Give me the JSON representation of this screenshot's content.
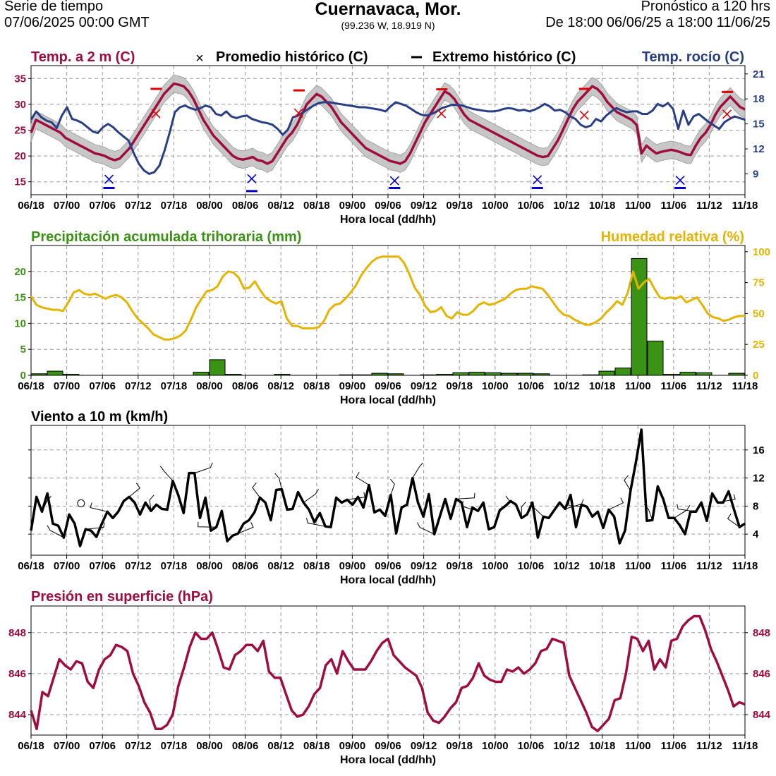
{
  "header": {
    "left1": "Serie de tiempo",
    "left2": "07/06/2025 00:00 GMT",
    "title": "Cuernavaca,  Mor.",
    "subtitle": "(99.236 W, 18.919 N)",
    "right1": "Pronóstico a 120 hrs",
    "right2": "De 18:00 06/06/25 a 18:00 11/06/25"
  },
  "colors": {
    "temp": "#9e0d3d",
    "dew": "#283f86",
    "precip": "#3a9314",
    "rh": "#e6b300",
    "wind": "#000000",
    "pres": "#9e0d3d",
    "hist_max": "#e00000",
    "hist_min": "#0000cc"
  },
  "x_ticks": [
    "06/18",
    "07/00",
    "07/06",
    "07/12",
    "07/18",
    "08/00",
    "08/06",
    "08/12",
    "08/18",
    "09/00",
    "09/06",
    "09/12",
    "09/18",
    "10/00",
    "10/06",
    "10/12",
    "10/18",
    "11/00",
    "11/06",
    "11/12",
    "11/18"
  ],
  "chart_data": [
    {
      "type": "line",
      "title": "Temp. a 2 m (C)",
      "title_right": "Temp. rocío (C)",
      "legend_avg": "Promedio histórico (C)",
      "legend_ext": "Extremo histórico (C)",
      "xlabel": "Hora local (dd/hh)",
      "ylim": [
        12.5,
        37.5
      ],
      "yticks": [
        15,
        20,
        25,
        30,
        35
      ],
      "ylim_right": [
        6.5,
        22
      ],
      "yticks_right": [
        9,
        12,
        15,
        18,
        21
      ],
      "series": [
        {
          "name": "Temp. a 2 m (C)",
          "axis": "left",
          "values": [
            24.5,
            27,
            26.5,
            26,
            25.5,
            25,
            24.5,
            23.5,
            23,
            22.5,
            22,
            21.5,
            21,
            20.5,
            20.3,
            20,
            19.5,
            19.2,
            19.5,
            20.5,
            21.5,
            23,
            24.5,
            26,
            27.5,
            29,
            30.5,
            32,
            33,
            34,
            33.8,
            33.5,
            32.5,
            31,
            29,
            27,
            25.5,
            24,
            23,
            22,
            21,
            20,
            19.5,
            19.3,
            19.5,
            19.8,
            19.2,
            19,
            18.5,
            19,
            20.5,
            22,
            23.5,
            24.5,
            26,
            28,
            30,
            31,
            32,
            31.5,
            30.5,
            29.5,
            28,
            26.5,
            25.5,
            24.5,
            23.5,
            22.5,
            21.5,
            21,
            20.5,
            20,
            19.5,
            19,
            18.8,
            18.5,
            19,
            20.5,
            22.5,
            24.5,
            26.5,
            28,
            29.5,
            31,
            32.5,
            32,
            31,
            29.5,
            28,
            27,
            26.5,
            26,
            25.5,
            25,
            24.5,
            24,
            23.5,
            23,
            22.5,
            22,
            21.5,
            21,
            20.5,
            20,
            19.8,
            20,
            21.5,
            23,
            25,
            27,
            29,
            30.5,
            31.5,
            32.5,
            33.5,
            33,
            32,
            30.5,
            29.5,
            28.5,
            28,
            27.5,
            27,
            26,
            20.5,
            22,
            21.2,
            20.5,
            20.8,
            21,
            21.2,
            21,
            20.7,
            20.3,
            20.2,
            22,
            23.5,
            24.5,
            26,
            28,
            29.5,
            30.5,
            31.5,
            30.5,
            29.5,
            29
          ]
        },
        {
          "name": "Temp. rocío (C)",
          "axis": "right",
          "values": [
            15.5,
            16.5,
            15.8,
            15.4,
            15.2,
            14.5,
            16,
            17,
            15.6,
            15.4,
            15.1,
            14.6,
            14.1,
            13.9,
            14.6,
            15,
            14.6,
            14,
            13.5,
            13,
            11.5,
            10.2,
            9.4,
            9,
            9.2,
            10,
            11.8,
            14,
            16.4,
            17,
            17.2,
            16.9,
            16.7,
            16.9,
            17.2,
            17,
            16.2,
            16,
            16.5,
            15.9,
            15.7,
            15.9,
            16,
            15.6,
            15.4,
            15.2,
            15.1,
            14.9,
            14.4,
            13.7,
            14.3,
            15.8,
            16,
            16.4,
            16.8,
            17.2,
            17.5,
            17.6,
            17.6,
            17.5,
            17.4,
            17.3,
            17.2,
            17.1,
            17,
            17,
            16.9,
            16.8,
            16.7,
            16.5,
            17.1,
            17.6,
            17.4,
            17.2,
            16.8,
            16.4,
            16.1,
            16,
            16.2,
            16.5,
            16.9,
            17.1,
            17.3,
            17.3,
            17.2,
            17,
            16.8,
            16.7,
            16.6,
            16.5,
            16.5,
            16.6,
            16.8,
            16.9,
            16.8,
            16.6,
            16.7,
            16.5,
            16.7,
            17,
            17.4,
            17.1,
            16.6,
            16.7,
            16.4,
            15.9,
            15.6,
            14.9,
            14.6,
            14.8,
            15.6,
            15.3,
            16,
            16.5,
            16.9,
            16.6,
            16.4,
            16.5,
            16.5,
            16.2,
            16.2,
            16.6,
            17.4,
            17.1,
            17.5,
            16.8,
            14.4,
            16.6,
            14.9,
            15.9,
            16.2,
            15.7,
            15.2,
            14.8,
            14.4,
            15.2,
            15.6,
            15.9,
            15.7,
            15.5
          ]
        }
      ],
      "historic_avg": [
        28.2,
        28.3,
        28.2,
        27.9,
        28.1
      ],
      "historic_max": [
        33,
        32.7,
        32.9,
        33,
        32.4
      ],
      "historic_min": [
        13.8,
        13.2,
        13.8,
        13.8,
        13.8
      ],
      "historic_min_avg": [
        15.5,
        15.6,
        15.2,
        15.4,
        15.3
      ]
    },
    {
      "type": "bar+line",
      "title": "Precipitación acumulada trihoraria (mm)",
      "title_right": "Humedad relativa (%)",
      "xlabel": "Hora local (dd/hh)",
      "ylim": [
        0,
        25
      ],
      "yticks": [
        0,
        5,
        10,
        15,
        20
      ],
      "ylim_right": [
        0,
        105
      ],
      "yticks_right": [
        0,
        25,
        50,
        75,
        100
      ],
      "series": [
        {
          "name": "Precipitación acumulada trihoraria (mm)",
          "axis": "left",
          "values": [
            0.3,
            0.8,
            0.2,
            0,
            0,
            0,
            0,
            0,
            0,
            0,
            0.6,
            3.0,
            0.2,
            0,
            0,
            0.2,
            0,
            0,
            0,
            0.1,
            0.1,
            0.4,
            0.3,
            0,
            0.1,
            0.2,
            0.5,
            0.6,
            0.5,
            0.4,
            0.4,
            0.3,
            0,
            0,
            0.1,
            0.8,
            1.4,
            22.5,
            6.6,
            0.2,
            0.6,
            0.5,
            0,
            0.4
          ]
        },
        {
          "name": "Humedad relativa (%)",
          "axis": "right",
          "values": [
            64,
            57,
            55,
            54,
            53,
            53,
            52,
            59,
            67,
            69,
            66,
            65,
            66,
            64,
            62,
            64,
            65,
            63,
            59,
            52,
            46,
            42,
            38,
            33,
            31,
            29,
            29,
            30,
            32,
            36,
            45,
            55,
            62,
            68,
            69,
            72,
            80,
            84,
            83,
            79,
            70,
            71,
            76,
            69,
            63,
            60,
            58,
            60,
            46,
            40,
            40,
            38,
            38,
            38,
            39,
            44,
            53,
            57,
            58,
            62,
            67,
            73,
            81,
            87,
            92,
            95,
            96,
            96,
            96,
            96,
            91,
            82,
            71,
            65,
            56,
            51,
            52,
            55,
            48,
            46,
            51,
            49,
            49,
            52,
            57,
            59,
            57,
            58,
            60,
            62,
            66,
            69,
            70,
            70,
            72,
            71,
            70,
            65,
            59,
            53,
            49,
            48,
            45,
            43,
            41,
            41,
            43,
            46,
            51,
            55,
            60,
            57,
            67,
            84,
            70,
            75,
            78,
            70,
            63,
            62,
            63,
            62,
            64,
            59,
            61,
            63,
            57,
            50,
            47,
            46,
            44,
            45,
            47,
            48,
            48
          ]
        }
      ]
    },
    {
      "type": "line",
      "title": "Viento a 10 m (km/h)",
      "xlabel": "Hora local (dd/hh)",
      "ylim": [
        1,
        19.5
      ],
      "yticks": [
        4,
        8,
        12,
        16
      ],
      "series": [
        {
          "name": "Viento a 10 m (km/h)",
          "axis": "left",
          "values": [
            4.5,
            9.3,
            7.2,
            9.8,
            5.5,
            5.2,
            3.5,
            6.8,
            5.5,
            2.3,
            4.7,
            4.5,
            3.6,
            5.5,
            7.2,
            6.3,
            7.2,
            8.7,
            9.3,
            8.5,
            6.8,
            8.5,
            7.3,
            8.2,
            7.6,
            7.5,
            11.6,
            9.6,
            7,
            12.7,
            12.7,
            6.3,
            9.2,
            4.5,
            5,
            7.3,
            3,
            3.8,
            4.1,
            5.5,
            6,
            7.1,
            9.2,
            8.5,
            6,
            10.3,
            10.4,
            7.5,
            7.6,
            10,
            8.5,
            7.5,
            5.7,
            7,
            5.1,
            5,
            9.2,
            8.5,
            8.9,
            8.2,
            9.3,
            7.8,
            11,
            7.1,
            7.5,
            6.6,
            9.6,
            4.1,
            7.8,
            8.2,
            12,
            8.5,
            6.5,
            9.7,
            4,
            6.5,
            9,
            6.2,
            9,
            8.5,
            5,
            7.8,
            7.3,
            8.5,
            4.7,
            5,
            7.4,
            8,
            8.7,
            8.2,
            6.3,
            6.8,
            8.5,
            3.5,
            6.5,
            6.3,
            7.4,
            8.5,
            7.6,
            9.6,
            5,
            8.2,
            7.9,
            6.5,
            7.2,
            4.9,
            7.5,
            6.5,
            2.7,
            4.5,
            10.2,
            14.3,
            18.9,
            5.9,
            6,
            10.8,
            9,
            6.3,
            6.3,
            5.3,
            4,
            7.2,
            7.2,
            8.5,
            5.9,
            9.8,
            8.5,
            8.5,
            10.1,
            7.5,
            5,
            5.5
          ]
        }
      ]
    },
    {
      "type": "line",
      "title": "Presión en superficie (hPa)",
      "xlabel": "Hora local (dd/hh)",
      "ylim": [
        843,
        849.3
      ],
      "yticks": [
        844,
        846,
        848
      ],
      "series": [
        {
          "name": "Presión en superficie (hPa)",
          "axis": "both",
          "values": [
            844.2,
            843.3,
            845.1,
            844.9,
            845.8,
            846.7,
            846.4,
            846.2,
            846.6,
            846.5,
            845.6,
            845.3,
            846.2,
            846.7,
            846.9,
            847.4,
            847.3,
            847.1,
            846,
            845.4,
            844.6,
            844.1,
            843.3,
            843.3,
            843.5,
            844,
            845.4,
            846.3,
            847.3,
            848,
            847.7,
            847.7,
            848,
            847.2,
            846.3,
            846.2,
            846.9,
            847.1,
            847.4,
            847.4,
            847.1,
            847.6,
            846.1,
            845.8,
            845.8,
            845,
            844.2,
            843.9,
            844,
            844.4,
            845,
            845.3,
            846.4,
            846.7,
            846,
            847.1,
            846.6,
            846.2,
            846.2,
            846.2,
            846.6,
            847.1,
            847.5,
            847.7,
            846.9,
            846.6,
            846.3,
            846.1,
            845.9,
            845.3,
            844.1,
            843.7,
            843.6,
            843.9,
            844.3,
            844.6,
            845.3,
            845.4,
            845.8,
            846.5,
            845.9,
            845.7,
            845.6,
            845.6,
            846.2,
            846.1,
            846.3,
            846,
            846.2,
            846.5,
            847.1,
            847.2,
            847.7,
            847.6,
            847.5,
            845.9,
            845.3,
            844.7,
            844.1,
            843.4,
            843.2,
            843.5,
            843.8,
            844.7,
            844.8,
            846,
            847.8,
            847.7,
            847.1,
            847.6,
            846.2,
            846.7,
            846.3,
            847.6,
            847.7,
            848.3,
            848.6,
            848.8,
            848.8,
            848.1,
            847.2,
            846.6,
            845.9,
            845.2,
            844.4,
            844.6,
            844.5
          ]
        }
      ]
    }
  ]
}
